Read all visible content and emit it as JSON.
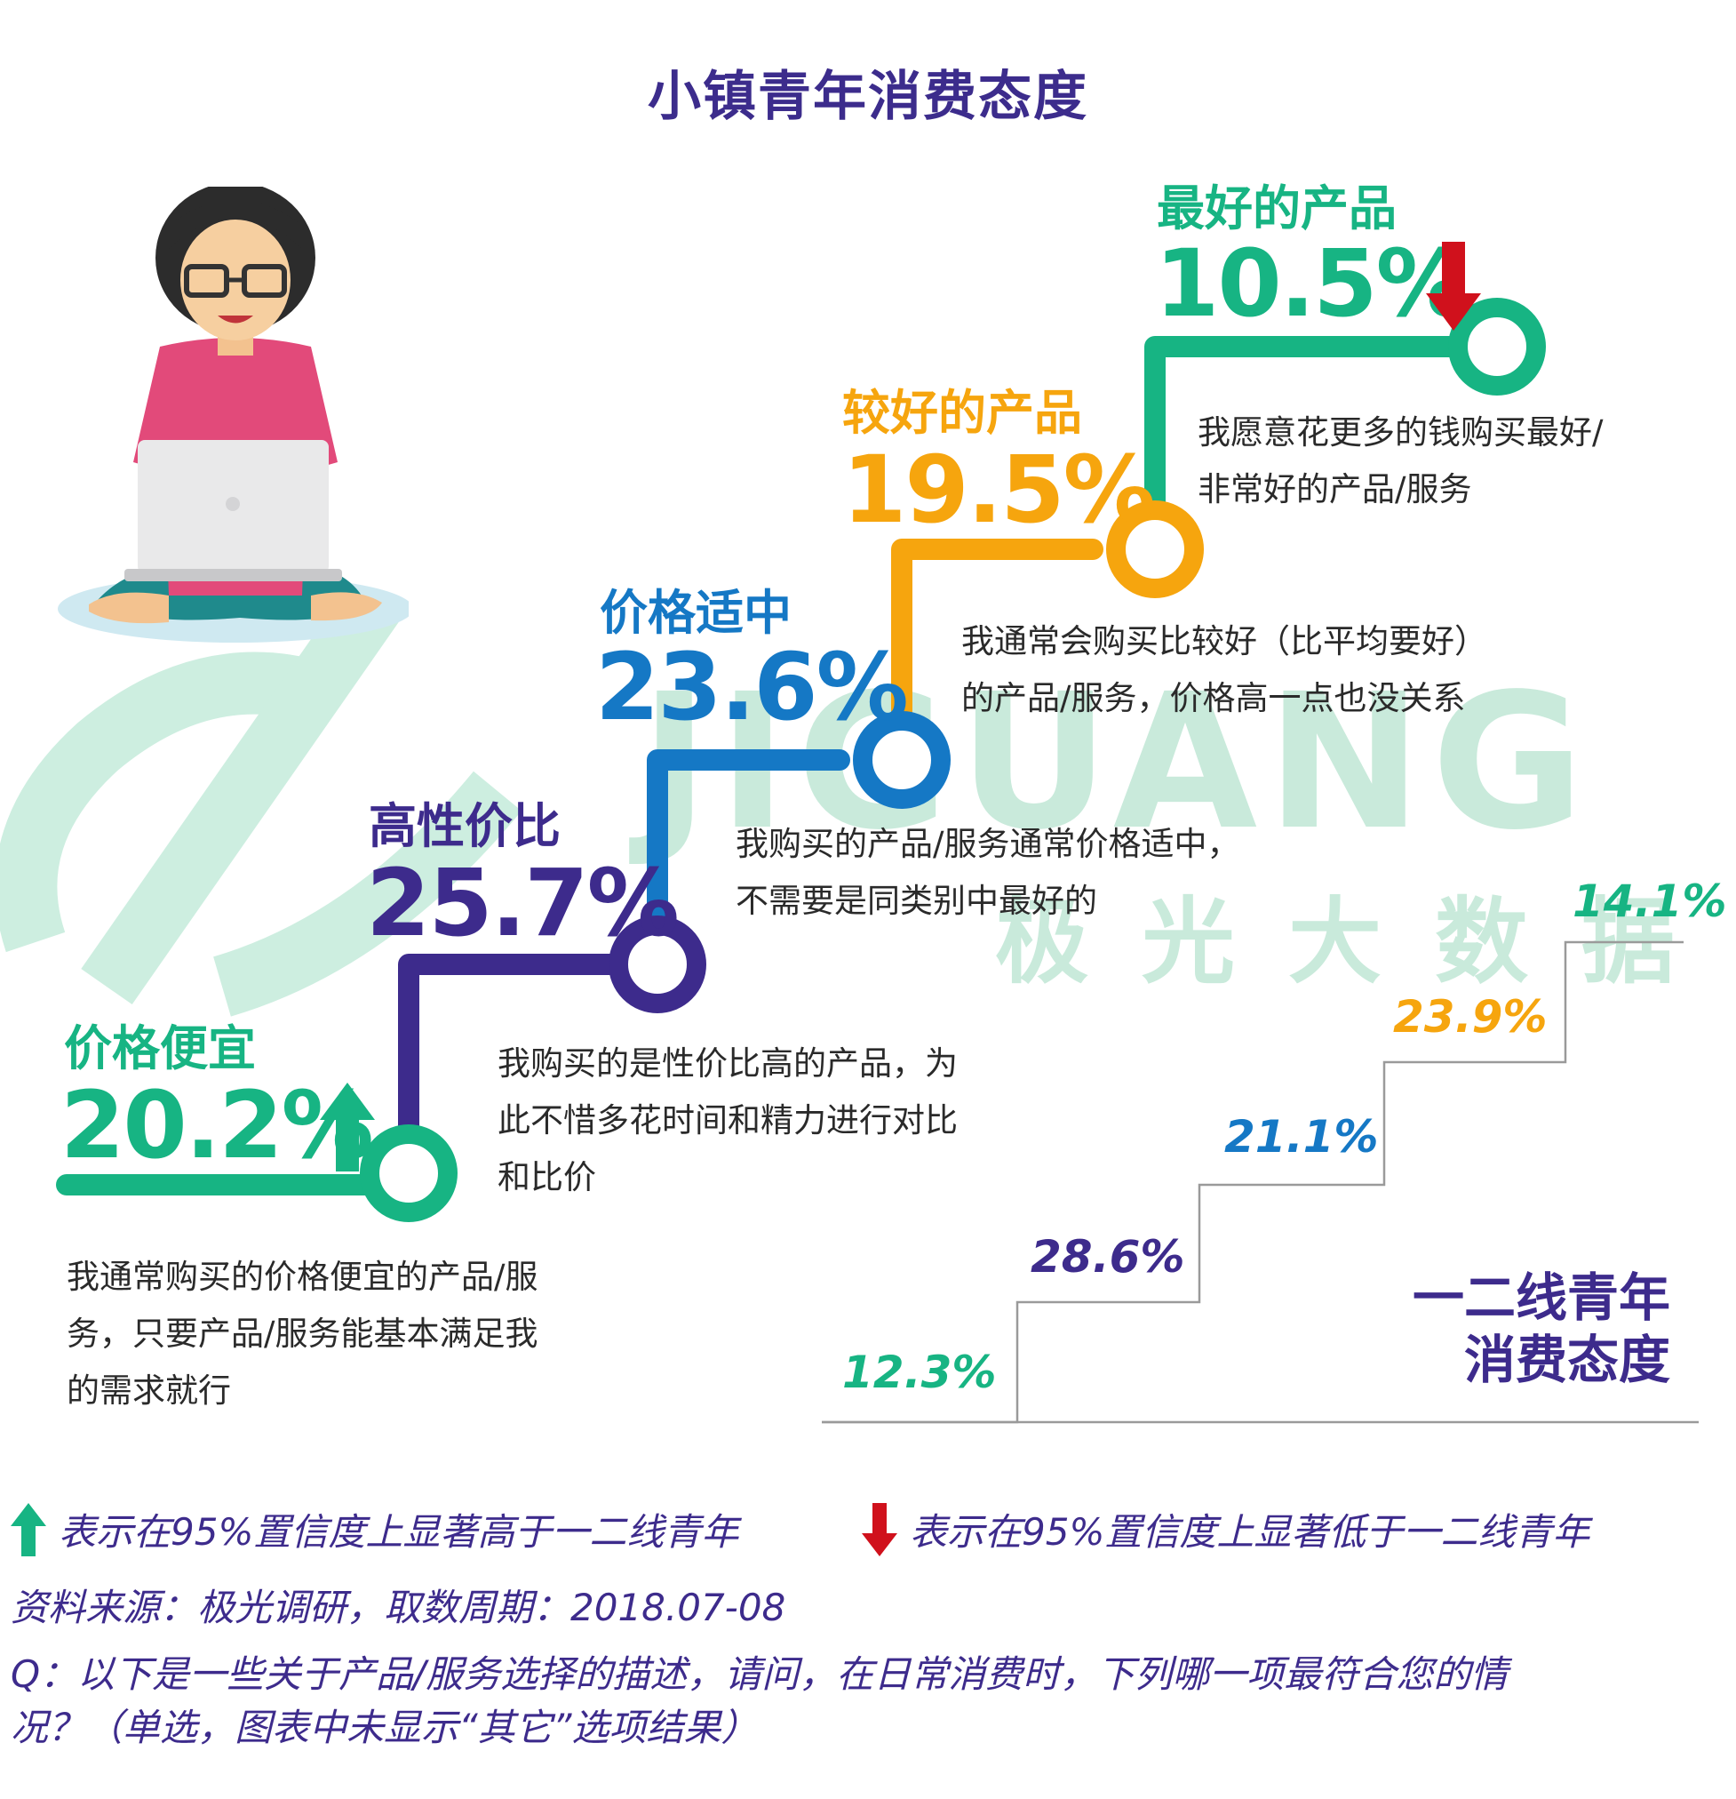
{
  "title": "小镇青年消费态度",
  "watermark": {
    "brand": "JIGUANG",
    "cn": "极光大数据"
  },
  "steps": [
    {
      "category": "价格便宜",
      "value": "20.2%",
      "mark": "up",
      "color": "#17b483",
      "desc": [
        "我通常购买的价格便宜的产品/服",
        "务，只要产品/服务能基本满足我",
        "的需求就行"
      ]
    },
    {
      "category": "高性价比",
      "value": "25.7%",
      "mark": "",
      "color": "#3d2b8c",
      "desc": [
        "我购买的是性价比高的产品，为",
        "此不惜多花时间和精力进行对比",
        "和比价"
      ]
    },
    {
      "category": "价格适中",
      "value": "23.6%",
      "mark": "",
      "color": "#1578c5",
      "desc": [
        "我购买的产品/服务通常价格适中，",
        "不需要是同类别中最好的"
      ]
    },
    {
      "category": "较好的产品",
      "value": "19.5%",
      "mark": "",
      "color": "#f6a50e",
      "desc": [
        "我通常会购买比较好（比平均要好）",
        "的产品/服务，价格高一点也没关系"
      ]
    },
    {
      "category": "最好的产品",
      "value": "10.5%",
      "mark": "down",
      "color": "#17b483",
      "desc": [
        "我愿意花更多的钱购买最好/",
        "非常好的产品/服务"
      ]
    }
  ],
  "comparison": {
    "label_line1": "一二线青年",
    "label_line2": "消费态度",
    "values": [
      "12.3%",
      "28.6%",
      "21.1%",
      "23.9%",
      "14.1%"
    ],
    "colors": [
      "#17b483",
      "#3d2b8c",
      "#1578c5",
      "#f6a50e",
      "#17b483"
    ]
  },
  "chart_data": [
    {
      "type": "bar",
      "title": "小镇青年消费态度",
      "categories": [
        "价格便宜",
        "高性价比",
        "价格适中",
        "较好的产品",
        "最好的产品"
      ],
      "series": [
        {
          "name": "小镇青年",
          "values": [
            20.2,
            25.7,
            23.6,
            19.5,
            10.5
          ]
        },
        {
          "name": "一二线青年",
          "values": [
            12.3,
            28.6,
            21.1,
            23.9,
            14.1
          ]
        }
      ],
      "significance": [
        "higher",
        "",
        "",
        "",
        "lower"
      ],
      "unit": "%"
    }
  ],
  "legend": {
    "up_text": "表示在95%置信度上显著高于一二线青年",
    "down_text": "表示在95%置信度上显著低于一二线青年",
    "up_color": "#17b483",
    "down_color": "#d0111c"
  },
  "footer": {
    "source": "资料来源：极光调研，取数周期：2018.07-08",
    "question_line1": "Q：以下是一些关于产品/服务选择的描述，请问，在日常消费时，下列哪一项最符合您的情",
    "question_line2": "况？（单选，图表中未显示“其它”选项结果）"
  }
}
